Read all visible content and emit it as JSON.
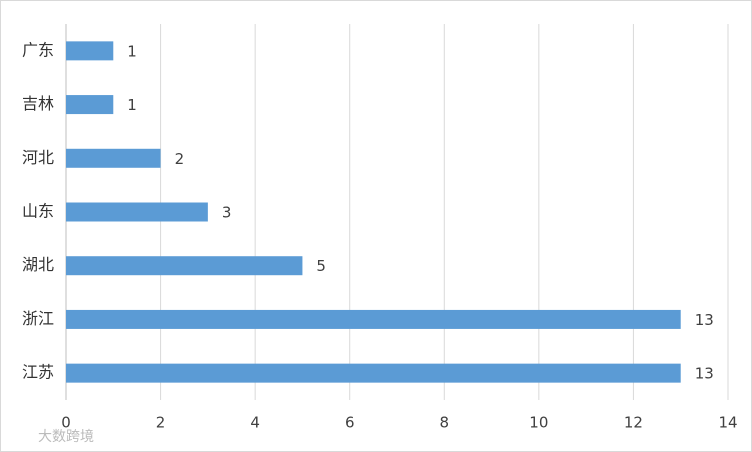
{
  "chart_data": {
    "type": "bar",
    "orientation": "horizontal",
    "categories": [
      "广东",
      "吉林",
      "河北",
      "山东",
      "湖北",
      "浙江",
      "江苏"
    ],
    "values": [
      1,
      1,
      2,
      3,
      5,
      13,
      13
    ],
    "color": "#5b9bd5",
    "xlim": [
      0,
      14
    ],
    "xticks": [
      0,
      2,
      4,
      6,
      8,
      10,
      12,
      14
    ],
    "grid": true,
    "watermark": "大数跨境"
  }
}
